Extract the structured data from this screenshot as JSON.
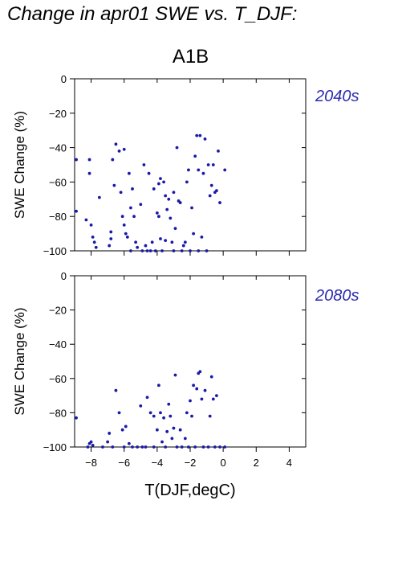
{
  "title": "Change in apr01 SWE vs. T_DJF:",
  "scenario": "A1B",
  "colors": {
    "points": "#1a1aa8",
    "period_label": "#2b2bb0",
    "axes": "#000000"
  },
  "chart_data": [
    {
      "type": "scatter",
      "period": "2040s",
      "xlabel": "",
      "ylabel": "SWE Change (%)",
      "xlim": [
        -9,
        5
      ],
      "ylim": [
        -100,
        0
      ],
      "xticks": [
        -8,
        -6,
        -4,
        -2,
        0,
        2,
        4
      ],
      "yticks": [
        0,
        -20,
        -40,
        -60,
        -80,
        -100
      ],
      "x_tick_labels_shown": false,
      "points": [
        [
          -8.9,
          -47
        ],
        [
          -8.9,
          -77
        ],
        [
          -8.3,
          -82
        ],
        [
          -8.1,
          -47
        ],
        [
          -8.1,
          -55
        ],
        [
          -8.0,
          -85
        ],
        [
          -7.9,
          -92
        ],
        [
          -7.8,
          -95
        ],
        [
          -7.7,
          -98
        ],
        [
          -7.5,
          -69
        ],
        [
          -6.9,
          -97
        ],
        [
          -6.8,
          -89
        ],
        [
          -6.8,
          -93
        ],
        [
          -6.7,
          -47
        ],
        [
          -6.6,
          -62
        ],
        [
          -6.5,
          -38
        ],
        [
          -6.3,
          -42
        ],
        [
          -6.2,
          -66
        ],
        [
          -6.1,
          -80
        ],
        [
          -6.0,
          -85
        ],
        [
          -6.0,
          -41
        ],
        [
          -5.9,
          -90
        ],
        [
          -5.8,
          -92
        ],
        [
          -5.7,
          -55
        ],
        [
          -5.6,
          -75
        ],
        [
          -5.6,
          -100
        ],
        [
          -5.5,
          -64
        ],
        [
          -5.4,
          -80
        ],
        [
          -5.3,
          -95
        ],
        [
          -5.2,
          -98
        ],
        [
          -5.0,
          -73
        ],
        [
          -4.9,
          -100
        ],
        [
          -4.8,
          -50
        ],
        [
          -4.7,
          -97
        ],
        [
          -4.6,
          -100
        ],
        [
          -4.5,
          -55
        ],
        [
          -4.4,
          -100
        ],
        [
          -4.3,
          -95
        ],
        [
          -4.2,
          -64
        ],
        [
          -4.1,
          -100
        ],
        [
          -4.0,
          -78
        ],
        [
          -3.9,
          -80
        ],
        [
          -3.9,
          -61
        ],
        [
          -3.8,
          -93
        ],
        [
          -3.8,
          -58
        ],
        [
          -3.7,
          -100
        ],
        [
          -3.6,
          -60
        ],
        [
          -3.5,
          -68
        ],
        [
          -3.5,
          -94
        ],
        [
          -3.4,
          -76
        ],
        [
          -3.3,
          -70
        ],
        [
          -3.2,
          -81
        ],
        [
          -3.1,
          -95
        ],
        [
          -3.0,
          -66
        ],
        [
          -3.0,
          -100
        ],
        [
          -2.9,
          -87
        ],
        [
          -2.8,
          -40
        ],
        [
          -2.7,
          -71
        ],
        [
          -2.6,
          -72
        ],
        [
          -2.5,
          -100
        ],
        [
          -2.4,
          -97
        ],
        [
          -2.3,
          -95
        ],
        [
          -2.2,
          -60
        ],
        [
          -2.1,
          -53
        ],
        [
          -2.0,
          -100
        ],
        [
          -1.9,
          -75
        ],
        [
          -1.8,
          -90
        ],
        [
          -1.7,
          -45
        ],
        [
          -1.6,
          -33
        ],
        [
          -1.5,
          -53
        ],
        [
          -1.5,
          -100
        ],
        [
          -1.4,
          -33
        ],
        [
          -1.3,
          -92
        ],
        [
          -1.2,
          -55
        ],
        [
          -1.1,
          -35
        ],
        [
          -1.0,
          -100
        ],
        [
          -0.9,
          -50
        ],
        [
          -0.8,
          -68
        ],
        [
          -0.7,
          -62
        ],
        [
          -0.6,
          -50
        ],
        [
          -0.5,
          -66
        ],
        [
          -0.4,
          -65
        ],
        [
          -0.3,
          -42
        ],
        [
          -0.2,
          -72
        ],
        [
          0.1,
          -53
        ]
      ]
    },
    {
      "type": "scatter",
      "period": "2080s",
      "xlabel": "T(DJF,degC)",
      "ylabel": "SWE Change (%)",
      "xlim": [
        -9,
        5
      ],
      "ylim": [
        -100,
        0
      ],
      "xticks": [
        -8,
        -6,
        -4,
        -2,
        0,
        2,
        4
      ],
      "yticks": [
        0,
        -20,
        -40,
        -60,
        -80,
        -100
      ],
      "x_tick_labels": [
        "−8",
        "−6",
        "−4",
        "−2",
        "0",
        "2",
        "4"
      ],
      "points": [
        [
          -8.9,
          -83
        ],
        [
          -8.2,
          -100
        ],
        [
          -8.1,
          -98
        ],
        [
          -8.0,
          -97
        ],
        [
          -7.9,
          -99
        ],
        [
          -7.3,
          -100
        ],
        [
          -7.0,
          -97
        ],
        [
          -6.9,
          -92
        ],
        [
          -6.7,
          -100
        ],
        [
          -6.5,
          -67
        ],
        [
          -6.3,
          -80
        ],
        [
          -6.1,
          -90
        ],
        [
          -6.0,
          -100
        ],
        [
          -5.9,
          -88
        ],
        [
          -5.7,
          -98
        ],
        [
          -5.5,
          -100
        ],
        [
          -5.2,
          -100
        ],
        [
          -5.0,
          -76
        ],
        [
          -4.9,
          -100
        ],
        [
          -4.7,
          -100
        ],
        [
          -4.6,
          -71
        ],
        [
          -4.4,
          -80
        ],
        [
          -4.2,
          -82
        ],
        [
          -4.2,
          -100
        ],
        [
          -4.0,
          -90
        ],
        [
          -3.9,
          -64
        ],
        [
          -3.8,
          -80
        ],
        [
          -3.7,
          -97
        ],
        [
          -3.6,
          -83
        ],
        [
          -3.5,
          -100
        ],
        [
          -3.4,
          -91
        ],
        [
          -3.3,
          -75
        ],
        [
          -3.2,
          -82
        ],
        [
          -3.1,
          -95
        ],
        [
          -3.0,
          -89
        ],
        [
          -2.9,
          -58
        ],
        [
          -2.8,
          -100
        ],
        [
          -2.6,
          -90
        ],
        [
          -2.5,
          -100
        ],
        [
          -2.3,
          -95
        ],
        [
          -2.2,
          -80
        ],
        [
          -2.1,
          -100
        ],
        [
          -2.0,
          -73
        ],
        [
          -1.9,
          -82
        ],
        [
          -1.8,
          -64
        ],
        [
          -1.7,
          -100
        ],
        [
          -1.6,
          -66
        ],
        [
          -1.5,
          -57
        ],
        [
          -1.4,
          -56
        ],
        [
          -1.3,
          -72
        ],
        [
          -1.2,
          -100
        ],
        [
          -1.1,
          -67
        ],
        [
          -0.9,
          -100
        ],
        [
          -0.8,
          -82
        ],
        [
          -0.7,
          -59
        ],
        [
          -0.6,
          -72
        ],
        [
          -0.5,
          -100
        ],
        [
          -0.4,
          -70
        ],
        [
          -0.2,
          -100
        ],
        [
          0.1,
          -100
        ]
      ]
    }
  ]
}
